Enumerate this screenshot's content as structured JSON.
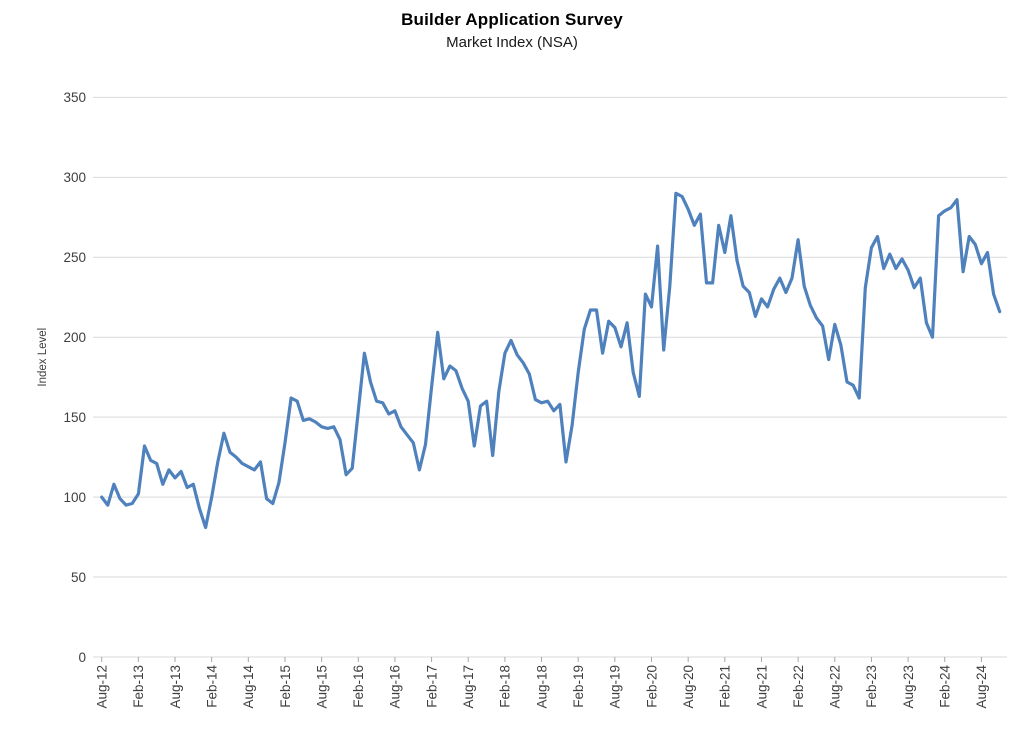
{
  "header": {
    "title": "Builder Application Survey",
    "subtitle": "Market Index (NSA)"
  },
  "chart_data": {
    "type": "line",
    "title": "Builder Application Survey",
    "subtitle": "Market Index (NSA)",
    "ylabel": "Index Level",
    "xlabel": "",
    "ylim": [
      0,
      350
    ],
    "y_ticks": [
      0,
      50,
      100,
      150,
      200,
      250,
      300,
      350
    ],
    "grid": "horizontal",
    "legend": "none",
    "line_color": "#4F81BD",
    "grid_color": "#d9d9d9",
    "x_start_month": "Aug-12",
    "x_frequency": "monthly",
    "x_tick_every": 6,
    "x_tick_labels": [
      "Aug-12",
      "Feb-13",
      "Aug-13",
      "Feb-14",
      "Aug-14",
      "Feb-15",
      "Aug-15",
      "Feb-16",
      "Aug-16",
      "Feb-17",
      "Aug-17",
      "Feb-18",
      "Aug-18",
      "Feb-19",
      "Aug-19",
      "Feb-20",
      "Aug-20",
      "Feb-21",
      "Aug-21",
      "Feb-22",
      "Aug-22",
      "Feb-23",
      "Aug-23",
      "Feb-24",
      "Aug-24"
    ],
    "series": [
      {
        "name": "Market Index (NSA)",
        "values": [
          100,
          95,
          108,
          99,
          95,
          96,
          102,
          132,
          123,
          121,
          108,
          117,
          112,
          116,
          106,
          108,
          93,
          81,
          100,
          122,
          140,
          128,
          125,
          121,
          119,
          117,
          122,
          99,
          96,
          109,
          134,
          162,
          160,
          148,
          149,
          147,
          144,
          143,
          144,
          136,
          114,
          118,
          154,
          190,
          172,
          160,
          159,
          152,
          154,
          144,
          139,
          134,
          117,
          133,
          169,
          203,
          174,
          182,
          179,
          168,
          160,
          132,
          157,
          160,
          126,
          166,
          190,
          198,
          189,
          184,
          177,
          161,
          159,
          160,
          154,
          158,
          122,
          145,
          178,
          205,
          217,
          217,
          190,
          210,
          206,
          194,
          209,
          178,
          163,
          227,
          219,
          257,
          192,
          232,
          290,
          288,
          280,
          270,
          277,
          234,
          234,
          270,
          253,
          276,
          248,
          232,
          228,
          213,
          224,
          219,
          230,
          237,
          228,
          237,
          261,
          232,
          220,
          212,
          207,
          186,
          208,
          195,
          172,
          170,
          162,
          231,
          256,
          263,
          243,
          252,
          243,
          249,
          242,
          231,
          237,
          209,
          200,
          276,
          279,
          281,
          286,
          241,
          263,
          258,
          246,
          253,
          227,
          216
        ]
      }
    ]
  }
}
